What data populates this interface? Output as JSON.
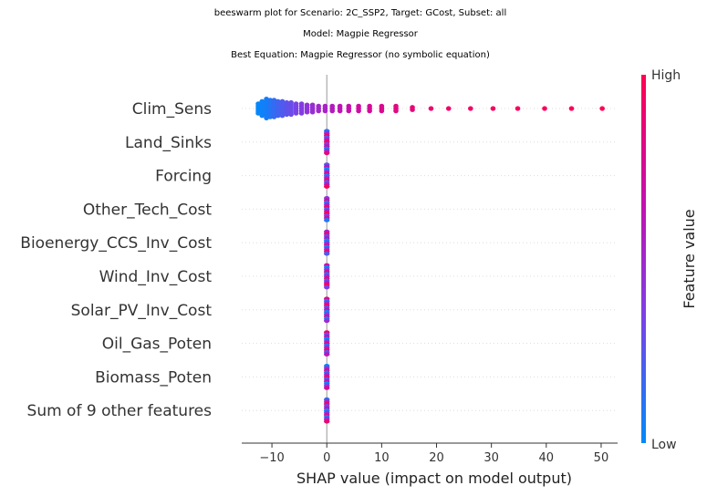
{
  "titles": {
    "line1": "beeswarm plot for Scenario: 2C_SSP2, Target: GCost, Subset: all",
    "line2": "Model: Magpie Regressor",
    "line3": "Best Equation: Magpie Regressor (no symbolic equation)"
  },
  "chart_data": {
    "type": "scatter",
    "subtype": "shap-beeswarm",
    "xlabel": "SHAP value (impact on model output)",
    "xlim": [
      -15.5,
      53
    ],
    "x_ticks": [
      -10,
      0,
      10,
      20,
      30,
      40,
      50
    ],
    "x_tick_labels": [
      "−10",
      "0",
      "10",
      "20",
      "30",
      "40",
      "50"
    ],
    "features": [
      "Clim_Sens",
      "Land_Sinks",
      "Forcing",
      "Other_Tech_Cost",
      "Bioenergy_CCS_Inv_Cost",
      "Wind_Inv_Cost",
      "Solar_PV_Inv_Cost",
      "Oil_Gas_Poten",
      "Biomass_Poten",
      "Sum of 9 other features"
    ],
    "clim_sens_points": [
      {
        "x": -12.5,
        "n": 5,
        "v": 0.02
      },
      {
        "x": -11.8,
        "n": 7,
        "v": 0.04
      },
      {
        "x": -11.0,
        "n": 9,
        "v": 0.06
      },
      {
        "x": -10.3,
        "n": 8,
        "v": 0.1
      },
      {
        "x": -9.6,
        "n": 8,
        "v": 0.14
      },
      {
        "x": -8.9,
        "n": 7,
        "v": 0.18
      },
      {
        "x": -8.1,
        "n": 7,
        "v": 0.22
      },
      {
        "x": -7.3,
        "n": 6,
        "v": 0.26
      },
      {
        "x": -6.5,
        "n": 6,
        "v": 0.3
      },
      {
        "x": -5.6,
        "n": 5,
        "v": 0.34
      },
      {
        "x": -4.6,
        "n": 5,
        "v": 0.38
      },
      {
        "x": -3.6,
        "n": 4,
        "v": 0.42
      },
      {
        "x": -2.6,
        "n": 4,
        "v": 0.46
      },
      {
        "x": -1.5,
        "n": 3,
        "v": 0.5
      },
      {
        "x": -0.3,
        "n": 3,
        "v": 0.54
      },
      {
        "x": 1.0,
        "n": 3,
        "v": 0.58
      },
      {
        "x": 2.4,
        "n": 3,
        "v": 0.62
      },
      {
        "x": 4.0,
        "n": 3,
        "v": 0.66
      },
      {
        "x": 5.8,
        "n": 3,
        "v": 0.7
      },
      {
        "x": 7.8,
        "n": 3,
        "v": 0.74
      },
      {
        "x": 10.0,
        "n": 3,
        "v": 0.78
      },
      {
        "x": 12.6,
        "n": 3,
        "v": 0.82
      },
      {
        "x": 15.6,
        "n": 2,
        "v": 0.86
      },
      {
        "x": 19.0,
        "n": 1,
        "v": 0.89
      },
      {
        "x": 22.2,
        "n": 1,
        "v": 0.91
      },
      {
        "x": 26.2,
        "n": 1,
        "v": 0.93
      },
      {
        "x": 30.3,
        "n": 1,
        "v": 0.95
      },
      {
        "x": 34.8,
        "n": 1,
        "v": 0.96
      },
      {
        "x": 39.7,
        "n": 1,
        "v": 0.97
      },
      {
        "x": 44.6,
        "n": 1,
        "v": 0.99
      },
      {
        "x": 50.2,
        "n": 1,
        "v": 1.0
      }
    ],
    "zero_feature_shap": 0,
    "zero_feature_value_mix": "mixed",
    "colorbar": {
      "label": "Feature value",
      "high_label": "High",
      "low_label": "Low",
      "colors": [
        "#008afb",
        "#7d40e6",
        "#c410b0",
        "#ff0052"
      ]
    },
    "grid": false
  }
}
